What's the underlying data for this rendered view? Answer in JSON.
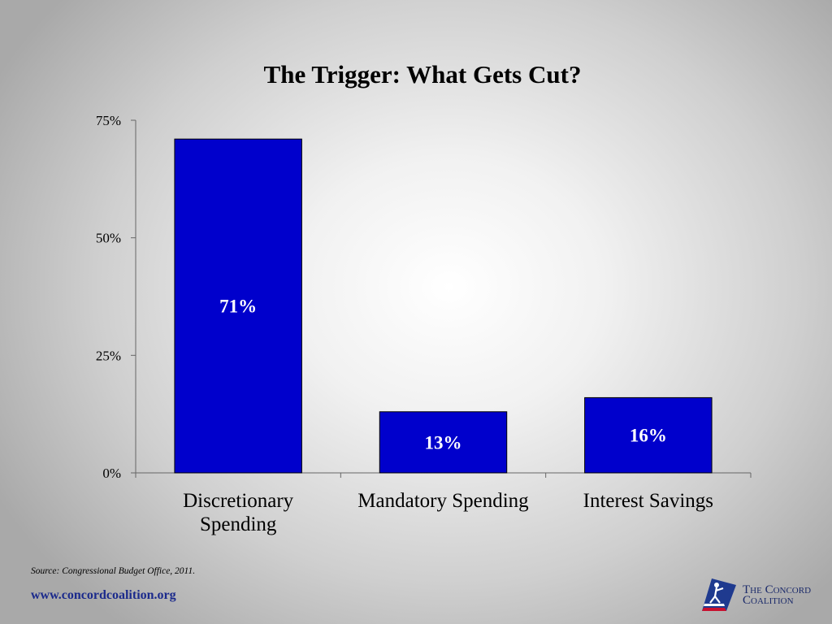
{
  "chart_data": {
    "type": "bar",
    "title": "The Trigger:  What Gets Cut?",
    "categories": [
      [
        "Discretionary",
        "Spending"
      ],
      [
        "Mandatory Spending"
      ],
      [
        "Interest Savings"
      ]
    ],
    "values": [
      71,
      13,
      16
    ],
    "data_labels": [
      "71%",
      "13%",
      "16%"
    ],
    "ylim": [
      0,
      75
    ],
    "yticks": [
      0,
      25,
      50,
      75
    ],
    "ytick_labels": [
      "0%",
      "25%",
      "50%",
      "75%"
    ],
    "bar_color": "#0000cc",
    "grid": false,
    "legend": "none"
  },
  "footer": {
    "source": "Source:  Congressional Budget Office, 2011.",
    "url": "www.concordcoalition.org",
    "logo_text": "The Concord\nCoalition",
    "logo_icon": "minuteman-flag-icon"
  }
}
